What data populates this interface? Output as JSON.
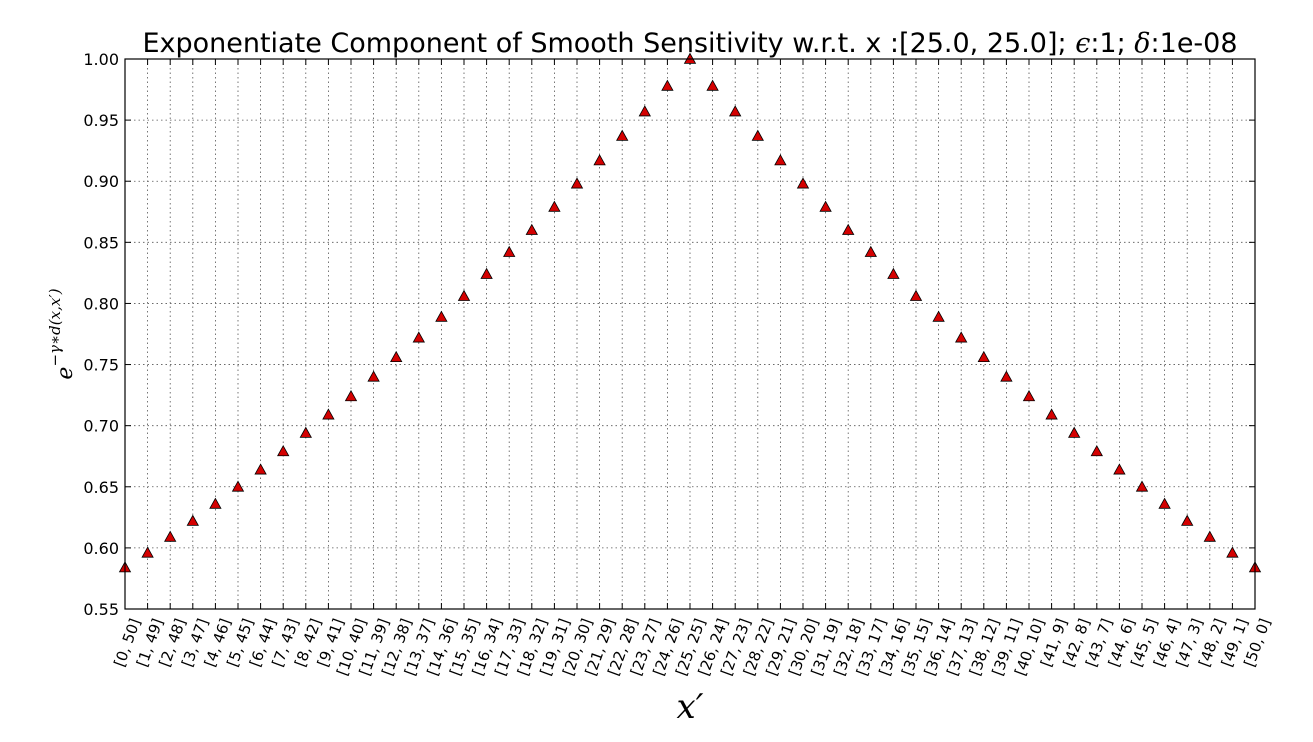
{
  "chart_data": {
    "type": "scatter",
    "title_prefix": "Exponentiate Component of Smooth Sensitivity w.r.t. x :[25.0, 25.0]; ",
    "title_eps_symbol": "ϵ",
    "title_eps_value": ":1; ",
    "title_delta_symbol": "δ",
    "title_delta_value": ":1e-08",
    "xlabel": "x′",
    "ylabel_base": "e",
    "ylabel_exponent": "−γ∗d(x,x′)",
    "ylim": [
      0.55,
      1.0
    ],
    "yticks": [
      "0.55",
      "0.60",
      "0.65",
      "0.70",
      "0.75",
      "0.80",
      "0.85",
      "0.90",
      "0.95",
      "1.00"
    ],
    "ytick_values": [
      0.55,
      0.6,
      0.65,
      0.7,
      0.75,
      0.8,
      0.85,
      0.9,
      0.95,
      1.0
    ],
    "grid": true,
    "marker": "triangle",
    "marker_color": "#d40000",
    "categories": [
      "[0, 50]",
      "[1, 49]",
      "[2, 48]",
      "[3, 47]",
      "[4, 46]",
      "[5, 45]",
      "[6, 44]",
      "[7, 43]",
      "[8, 42]",
      "[9, 41]",
      "[10, 40]",
      "[11, 39]",
      "[12, 38]",
      "[13, 37]",
      "[14, 36]",
      "[15, 35]",
      "[16, 34]",
      "[17, 33]",
      "[18, 32]",
      "[19, 31]",
      "[20, 30]",
      "[21, 29]",
      "[22, 28]",
      "[23, 27]",
      "[24, 26]",
      "[25, 25]",
      "[26, 24]",
      "[27, 23]",
      "[28, 22]",
      "[29, 21]",
      "[30, 20]",
      "[31, 19]",
      "[32, 18]",
      "[33, 17]",
      "[34, 16]",
      "[35, 15]",
      "[36, 14]",
      "[37, 13]",
      "[38, 12]",
      "[39, 11]",
      "[40, 10]",
      "[41, 9]",
      "[42, 8]",
      "[43, 7]",
      "[44, 6]",
      "[45, 5]",
      "[46, 4]",
      "[47, 3]",
      "[48, 2]",
      "[49, 1]",
      "[50, 0]"
    ],
    "values": [
      0.584,
      0.596,
      0.609,
      0.622,
      0.636,
      0.65,
      0.664,
      0.679,
      0.694,
      0.709,
      0.724,
      0.74,
      0.756,
      0.772,
      0.789,
      0.806,
      0.824,
      0.842,
      0.86,
      0.879,
      0.898,
      0.917,
      0.937,
      0.957,
      0.978,
      1.0,
      0.978,
      0.957,
      0.937,
      0.917,
      0.898,
      0.879,
      0.86,
      0.842,
      0.824,
      0.806,
      0.789,
      0.772,
      0.756,
      0.74,
      0.724,
      0.709,
      0.694,
      0.679,
      0.664,
      0.65,
      0.636,
      0.622,
      0.609,
      0.596,
      0.584
    ]
  }
}
